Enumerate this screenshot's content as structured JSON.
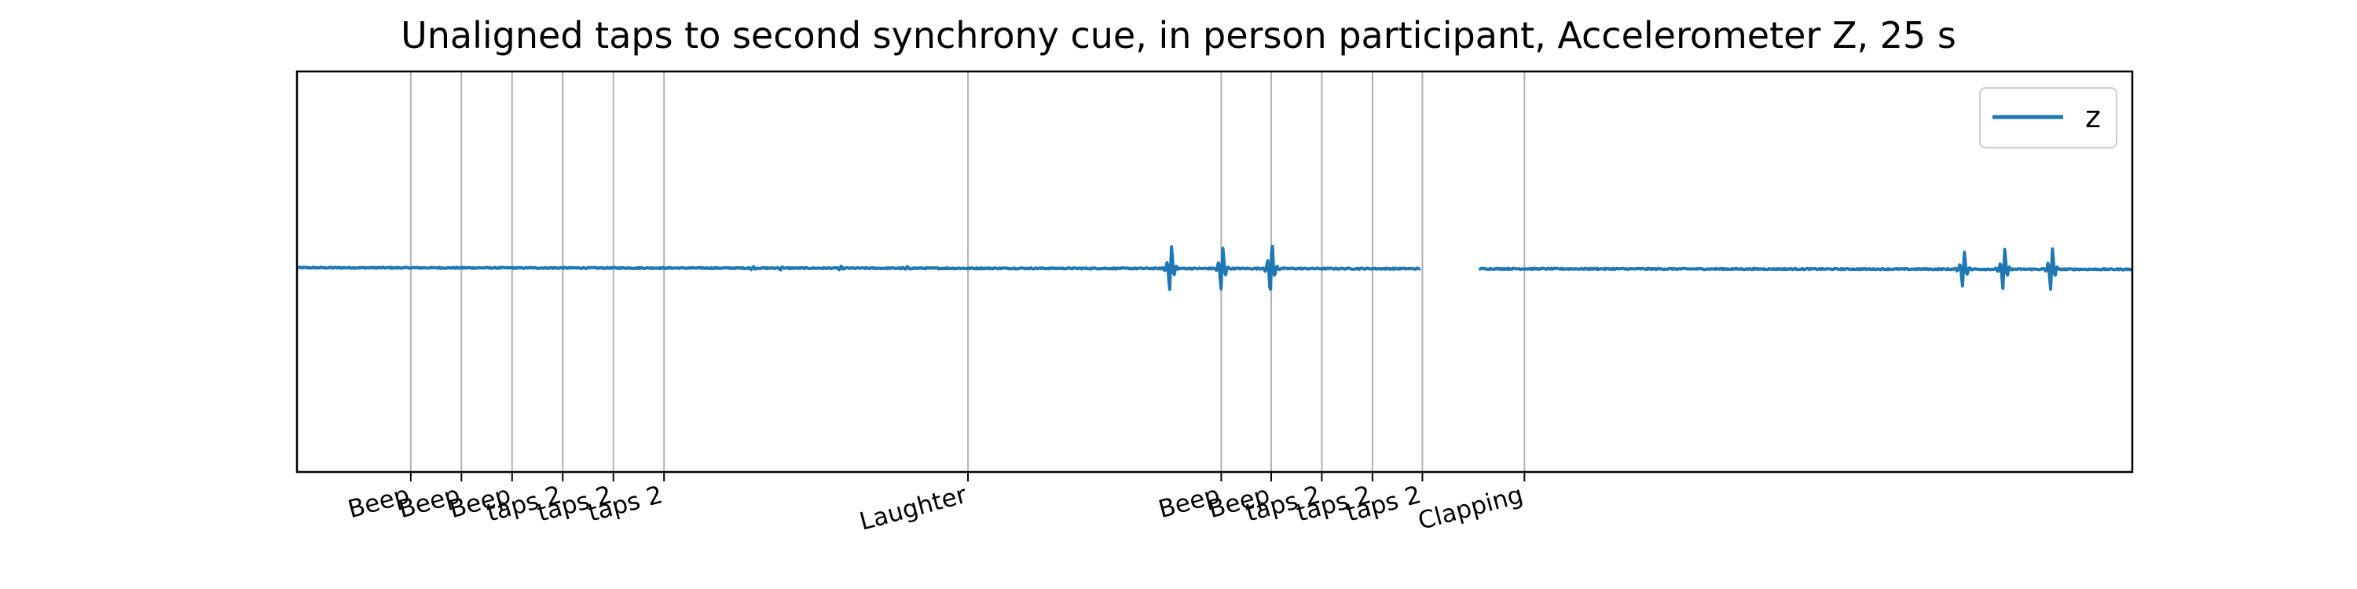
{
  "chart_data": {
    "type": "line",
    "title": "Unaligned taps to second synchrony cue, in person participant, Accelerometer Z, 25 s",
    "xlabel": "",
    "ylabel": "",
    "xlim": [
      0,
      25
    ],
    "ylim": [
      -1,
      1
    ],
    "grid": "vertical lines at event ticks",
    "legend": {
      "placement": "top-right",
      "entries": [
        "z"
      ]
    },
    "series": [
      {
        "name": "z",
        "color": "#1f77b4",
        "baseline": 0.02,
        "gap": [
          15.3,
          16.1
        ],
        "bursts": [
          {
            "t": 6.2,
            "amp": 0.015
          },
          {
            "t": 6.6,
            "amp": 0.012
          },
          {
            "t": 7.4,
            "amp": 0.012
          },
          {
            "t": 8.3,
            "amp": 0.01
          },
          {
            "t": 11.9,
            "amp": 0.18
          },
          {
            "t": 12.6,
            "amp": 0.17
          },
          {
            "t": 13.27,
            "amp": 0.2
          },
          {
            "t": 22.7,
            "amp": 0.14
          },
          {
            "t": 23.25,
            "amp": 0.16
          },
          {
            "t": 23.9,
            "amp": 0.17
          }
        ]
      }
    ],
    "ticks": [
      {
        "x": 1.55,
        "label": "Beep"
      },
      {
        "x": 2.24,
        "label": "Beep"
      },
      {
        "x": 2.93,
        "label": "Beep"
      },
      {
        "x": 3.62,
        "label": "taps 2"
      },
      {
        "x": 4.31,
        "label": "taps 2"
      },
      {
        "x": 5.0,
        "label": "taps 2"
      },
      {
        "x": 9.14,
        "label": "Laughter"
      },
      {
        "x": 12.59,
        "label": "Beep"
      },
      {
        "x": 13.27,
        "label": "Beep"
      },
      {
        "x": 13.96,
        "label": "taps 2"
      },
      {
        "x": 14.65,
        "label": "taps 2"
      },
      {
        "x": 15.33,
        "label": "taps 2"
      },
      {
        "x": 16.72,
        "label": "Clapping"
      }
    ],
    "colors": {
      "line": "#1f77b4",
      "grid": "#b0b0b0",
      "frame": "#000000"
    }
  }
}
